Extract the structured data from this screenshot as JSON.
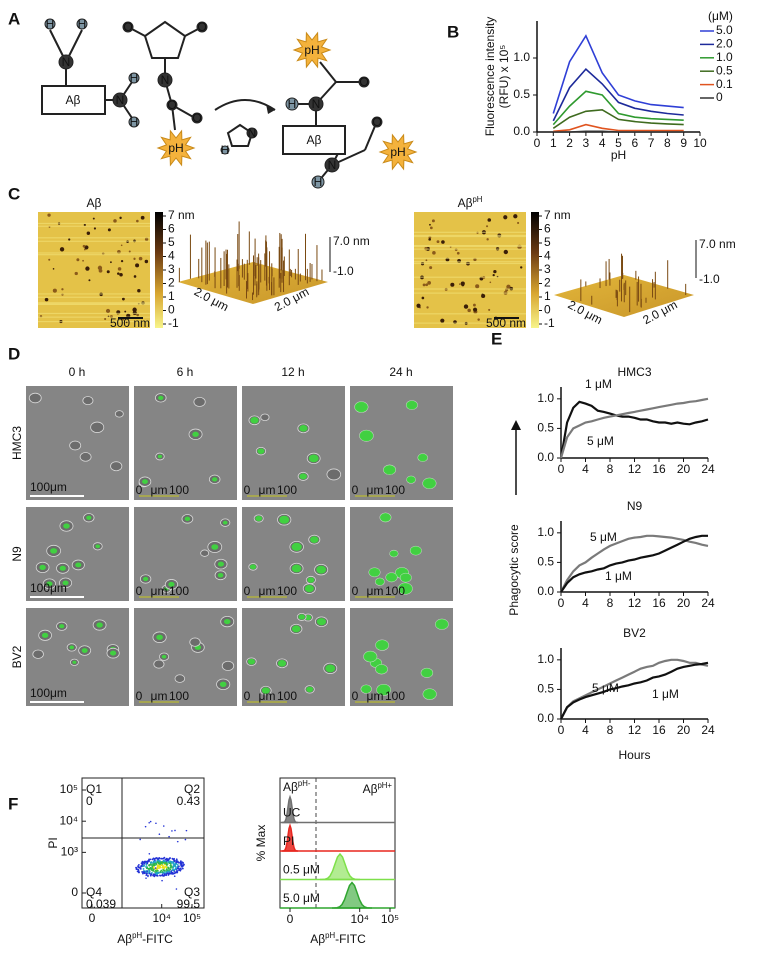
{
  "panel_labels": [
    "A",
    "B",
    "C",
    "D",
    "E",
    "F"
  ],
  "scheme": {
    "ab": "Aβ",
    "ph": "pH",
    "h": "H",
    "n": "N",
    "o": "O"
  },
  "chart_data": [
    {
      "type": "line",
      "ylabel": [
        "Fluorescence intensity",
        "(RFU) x 10⁵"
      ],
      "xlabel": "pH",
      "x": [
        1,
        2,
        3,
        4,
        5,
        6,
        7,
        8,
        9
      ],
      "xlim": [
        0,
        10
      ],
      "xticks": [
        0,
        1,
        2,
        3,
        4,
        5,
        6,
        7,
        8,
        9,
        10
      ],
      "ylim": [
        0,
        1.5
      ],
      "yticks": [
        {
          "value": 0,
          "label": "0.0"
        },
        {
          "value": 0.5,
          "label": "0.5"
        },
        {
          "value": 1,
          "label": "1.0"
        }
      ],
      "legend_title": "(μM)",
      "legend": "right",
      "series": [
        {
          "name": "5.0",
          "color": "#2f3fd6",
          "values": [
            0.25,
            0.95,
            1.3,
            0.8,
            0.5,
            0.42,
            0.37,
            0.35,
            0.33
          ]
        },
        {
          "name": "2.0",
          "color": "#1d2a9a",
          "values": [
            0.15,
            0.6,
            0.85,
            0.65,
            0.4,
            0.32,
            0.28,
            0.25,
            0.23
          ]
        },
        {
          "name": "1.0",
          "color": "#2f9a2f",
          "values": [
            0.1,
            0.35,
            0.55,
            0.5,
            0.25,
            0.2,
            0.18,
            0.17,
            0.16
          ]
        },
        {
          "name": "0.5",
          "color": "#3f6b1f",
          "values": [
            0.05,
            0.2,
            0.28,
            0.3,
            0.17,
            0.14,
            0.12,
            0.11,
            0.1
          ]
        },
        {
          "name": "0.1",
          "color": "#e0541f",
          "values": [
            0.01,
            0.03,
            0.1,
            0.05,
            0.02,
            0.02,
            0.02,
            0.02,
            0.02
          ]
        },
        {
          "name": "0",
          "color": "#333333",
          "values": [
            0,
            0,
            0.01,
            0.01,
            0,
            0,
            0,
            0,
            0
          ]
        }
      ]
    },
    {
      "type": "line",
      "title": "HMC3",
      "ylabel": "Phagocytic score",
      "x": [
        0,
        1,
        2,
        3,
        4,
        5,
        6,
        7,
        8,
        9,
        10,
        11,
        12,
        13,
        14,
        15,
        16,
        17,
        18,
        19,
        20,
        21,
        22,
        23,
        24
      ],
      "xlim": [
        0,
        24
      ],
      "xticks": [
        0,
        4,
        8,
        12,
        16,
        20,
        24
      ],
      "ylim": [
        0,
        1.2
      ],
      "yticks": [
        {
          "value": 0,
          "label": "0.0"
        },
        {
          "value": 0.5,
          "label": "0.5"
        },
        {
          "value": 1,
          "label": "1.0"
        }
      ],
      "series": [
        {
          "name": "1 μM",
          "color": "#111111",
          "values": [
            0,
            0.6,
            0.85,
            0.95,
            0.92,
            0.88,
            0.8,
            0.78,
            0.75,
            0.72,
            0.7,
            0.7,
            0.68,
            0.65,
            0.65,
            0.62,
            0.6,
            0.6,
            0.58,
            0.6,
            0.58,
            0.57,
            0.6,
            0.62,
            0.65
          ]
        },
        {
          "name": "5 μM",
          "color": "#7a7a7a",
          "values": [
            0,
            0.35,
            0.5,
            0.55,
            0.6,
            0.62,
            0.65,
            0.68,
            0.7,
            0.72,
            0.74,
            0.76,
            0.78,
            0.8,
            0.82,
            0.84,
            0.86,
            0.88,
            0.9,
            0.92,
            0.93,
            0.95,
            0.96,
            0.98,
            1.0
          ]
        }
      ]
    },
    {
      "type": "line",
      "title": "N9",
      "x": [
        0,
        1,
        2,
        3,
        4,
        5,
        6,
        7,
        8,
        9,
        10,
        11,
        12,
        13,
        14,
        15,
        16,
        17,
        18,
        19,
        20,
        21,
        22,
        23,
        24
      ],
      "xlim": [
        0,
        24
      ],
      "xticks": [
        0,
        4,
        8,
        12,
        16,
        20,
        24
      ],
      "ylim": [
        0,
        1.2
      ],
      "yticks": [
        {
          "value": 0,
          "label": "0.0"
        },
        {
          "value": 0.5,
          "label": "0.5"
        },
        {
          "value": 1,
          "label": "1.0"
        }
      ],
      "series": [
        {
          "name": "5 μM",
          "color": "#7a7a7a",
          "values": [
            0,
            0.2,
            0.35,
            0.45,
            0.5,
            0.58,
            0.65,
            0.72,
            0.78,
            0.82,
            0.86,
            0.9,
            0.92,
            0.93,
            0.95,
            0.95,
            0.94,
            0.93,
            0.92,
            0.9,
            0.88,
            0.85,
            0.83,
            0.8,
            0.78
          ]
        },
        {
          "name": "1 μM",
          "color": "#111111",
          "values": [
            0,
            0.15,
            0.25,
            0.3,
            0.33,
            0.35,
            0.38,
            0.4,
            0.45,
            0.48,
            0.5,
            0.53,
            0.55,
            0.58,
            0.6,
            0.62,
            0.65,
            0.7,
            0.75,
            0.8,
            0.85,
            0.9,
            0.93,
            0.95,
            0.95
          ]
        }
      ]
    },
    {
      "type": "line",
      "title": "BV2",
      "xlabel": "Hours",
      "x": [
        0,
        1,
        2,
        3,
        4,
        5,
        6,
        7,
        8,
        9,
        10,
        11,
        12,
        13,
        14,
        15,
        16,
        17,
        18,
        19,
        20,
        21,
        22,
        23,
        24
      ],
      "xlim": [
        0,
        24
      ],
      "xticks": [
        0,
        4,
        8,
        12,
        16,
        20,
        24
      ],
      "ylim": [
        0,
        1.2
      ],
      "yticks": [
        {
          "value": 0,
          "label": "0.0"
        },
        {
          "value": 0.5,
          "label": "0.5"
        },
        {
          "value": 1,
          "label": "1.0"
        }
      ],
      "series": [
        {
          "name": "5 μM",
          "color": "#7a7a7a",
          "values": [
            0,
            0.2,
            0.3,
            0.35,
            0.4,
            0.45,
            0.5,
            0.55,
            0.6,
            0.65,
            0.7,
            0.75,
            0.8,
            0.85,
            0.88,
            0.9,
            0.95,
            0.98,
            1.0,
            1.0,
            0.98,
            0.95,
            0.95,
            0.92,
            0.9
          ]
        },
        {
          "name": "1 μM",
          "color": "#111111",
          "values": [
            0,
            0.2,
            0.28,
            0.33,
            0.37,
            0.4,
            0.43,
            0.46,
            0.5,
            0.52,
            0.55,
            0.57,
            0.6,
            0.62,
            0.65,
            0.7,
            0.72,
            0.75,
            0.8,
            0.85,
            0.88,
            0.9,
            0.92,
            0.93,
            0.95
          ]
        }
      ]
    }
  ],
  "afm": {
    "titles": [
      {
        "main": "Aβ"
      },
      {
        "main": "Aβ",
        "sup": "pH"
      }
    ],
    "colorbar_ticks": [
      {
        "value": 7,
        "label": "7 nm"
      },
      6,
      5,
      4,
      3,
      2,
      1,
      0,
      -1
    ],
    "scale_bar": "500 nm",
    "z_top": "7.0 nm",
    "z_bottom": "-1.0",
    "xy": "2.0 μm"
  },
  "microscopy": {
    "columns": [
      "0 h",
      "6 h",
      "12 h",
      "24 h"
    ],
    "rows": [
      "HMC3",
      "N9",
      "BV2"
    ],
    "scale_bar": "100μm",
    "small_scale": [
      "0",
      "μm",
      "100"
    ]
  },
  "flow": {
    "y_label": "PI",
    "x_label": {
      "main": "Aβ",
      "sup": "pH",
      "rest": "-FITC"
    },
    "ticks": [
      {
        "value": 0,
        "label": "0"
      },
      {
        "value": 1000,
        "label": "10³"
      },
      {
        "value": 10000,
        "label": "10⁴"
      },
      {
        "value": 100000,
        "label": "10⁵"
      }
    ],
    "quadrants": [
      {
        "name": "Q1",
        "value": 0
      },
      {
        "name": "Q2",
        "value": 0.43
      },
      {
        "name": "Q4",
        "value": 0.039
      },
      {
        "name": "Q3",
        "value": 99.5
      }
    ],
    "hist_y_label": "% Max",
    "neg_label": {
      "main": "Aβ",
      "sup": "pH-"
    },
    "pos_label": {
      "main": "Aβ",
      "sup": "pH+"
    },
    "hist_rows": [
      {
        "name": "UC",
        "color": "#707070"
      },
      {
        "name": "PI",
        "color": "#e8261f"
      },
      {
        "name": "0.5 μM",
        "color": "#7ee04a"
      },
      {
        "name": "5.0 μM",
        "color": "#2fa52f"
      }
    ],
    "hist_ticks": [
      {
        "value": 0,
        "label": "0"
      },
      {
        "value": 10000,
        "label": "10⁴"
      },
      {
        "value": 100000,
        "label": "10⁵"
      }
    ]
  }
}
